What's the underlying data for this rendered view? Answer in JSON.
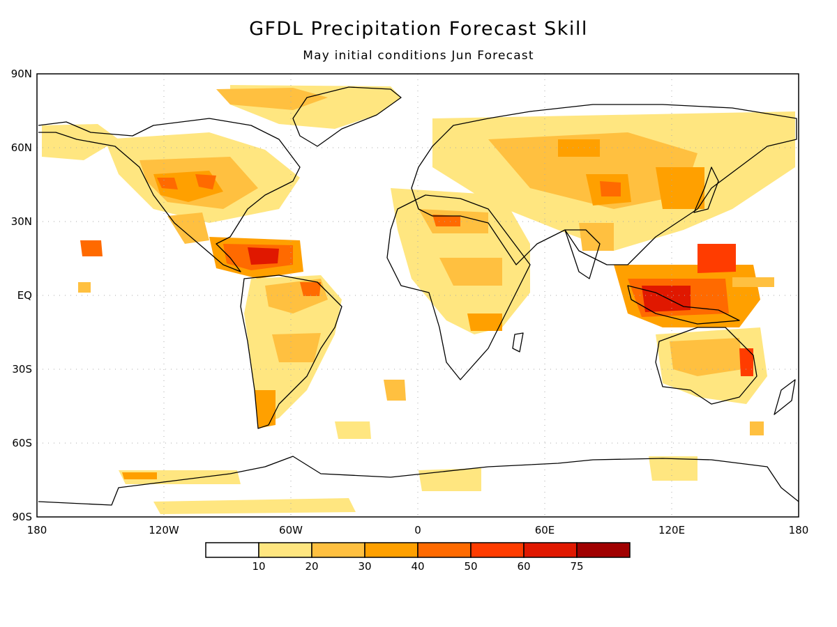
{
  "title": "GFDL Precipitation Forecast Skill",
  "subtitle": "May initial conditions  Jun Forecast",
  "lat_labels": [
    "90N",
    "60N",
    "30N",
    "EQ",
    "30S",
    "60S",
    "90S"
  ],
  "lon_labels": [
    "180",
    "120W",
    "60W",
    "0",
    "60E",
    "120E",
    "180"
  ],
  "legend": {
    "labels": [
      "10",
      "20",
      "30",
      "40",
      "50",
      "60",
      "75"
    ],
    "colors": [
      "#ffffff",
      "#ffe680",
      "#ffc040",
      "#ffa000",
      "#ff6a00",
      "#ff3c00",
      "#e01800",
      "#a00000"
    ]
  },
  "chart_data": {
    "type": "heatmap",
    "title": "GFDL Precipitation Forecast Skill",
    "subtitle": "May initial conditions  Jun Forecast",
    "x_range": [
      -180,
      180
    ],
    "y_range": [
      -90,
      90
    ],
    "grid": true,
    "levels": [
      10,
      20,
      30,
      40,
      50,
      60,
      75
    ],
    "regions": [
      {
        "lon": -75,
        "lat": 21,
        "value": 60
      },
      {
        "lon": -58,
        "lat": 18,
        "value": 55
      },
      {
        "lon": -110,
        "lat": 40,
        "value": 35
      },
      {
        "lon": -90,
        "lat": 42,
        "value": 35
      },
      {
        "lon": -122,
        "lat": 45,
        "value": 35
      },
      {
        "lon": -60,
        "lat": 2,
        "value": 40
      },
      {
        "lon": -70,
        "lat": -5,
        "value": 30
      },
      {
        "lon": -60,
        "lat": -22,
        "value": 30
      },
      {
        "lon": -75,
        "lat": -50,
        "value": 40
      },
      {
        "lon": -160,
        "lat": 20,
        "value": 45
      },
      {
        "lon": 5,
        "lat": 32,
        "value": 55
      },
      {
        "lon": 20,
        "lat": 10,
        "value": 35
      },
      {
        "lon": 25,
        "lat": -10,
        "value": 35
      },
      {
        "lon": 90,
        "lat": 45,
        "value": 50
      },
      {
        "lon": 115,
        "lat": 40,
        "value": 40
      },
      {
        "lon": 65,
        "lat": 60,
        "value": 40
      },
      {
        "lon": 115,
        "lat": 0,
        "value": 65
      },
      {
        "lon": 145,
        "lat": 15,
        "value": 60
      },
      {
        "lon": 130,
        "lat": -25,
        "value": 30
      },
      {
        "lon": 152,
        "lat": -28,
        "value": 55
      },
      {
        "lon": 0,
        "lat": -75,
        "value": 20
      },
      {
        "lon": 120,
        "lat": -70,
        "value": 20
      }
    ]
  }
}
